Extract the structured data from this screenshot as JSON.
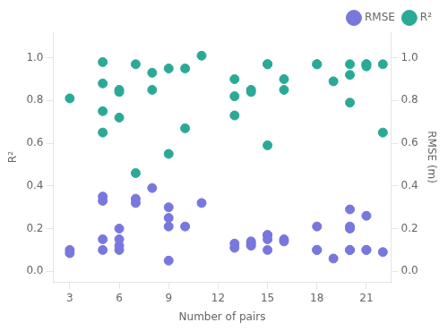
{
  "chart_data": {
    "type": "scatter",
    "xlabel": "Number of pairs",
    "ylabel": "R²",
    "y2label": "RMSE (m)",
    "xlim": [
      2.0,
      22.5
    ],
    "ylim": [
      -0.05,
      1.12
    ],
    "y2lim": [
      -0.05,
      1.12
    ],
    "xticks": [
      3,
      6,
      9,
      12,
      15,
      18,
      21
    ],
    "yticks": [
      {
        "value": 0.0,
        "label": "0.0"
      },
      0.2,
      0.4,
      0.6,
      0.8,
      {
        "value": 1.0,
        "label": "1.0"
      }
    ],
    "y2ticks": [
      {
        "value": 0.0,
        "label": "0.0"
      },
      0.2,
      0.4,
      0.6,
      0.8,
      {
        "value": 1.0,
        "label": "1.0"
      }
    ],
    "grid": false,
    "legend": "upper right",
    "series": [
      {
        "name": "RMSE",
        "color": "#7777dd",
        "axis": "y2",
        "x": [
          3,
          3,
          5,
          5,
          5,
          5,
          6,
          6,
          6,
          6,
          7,
          7,
          8,
          9,
          9,
          9,
          9,
          10,
          11,
          13,
          13,
          14,
          14,
          14,
          15,
          15,
          15,
          15,
          16,
          16,
          18,
          18,
          18,
          19,
          20,
          20,
          20,
          20,
          20,
          21,
          21,
          21,
          22
        ],
        "values": [
          0.1,
          0.085,
          0.35,
          0.33,
          0.15,
          0.1,
          0.2,
          0.15,
          0.12,
          0.1,
          0.34,
          0.32,
          0.39,
          0.3,
          0.25,
          0.21,
          0.05,
          0.21,
          0.32,
          0.11,
          0.13,
          0.12,
          0.13,
          0.14,
          0.17,
          0.17,
          0.15,
          0.1,
          0.15,
          0.14,
          0.1,
          0.1,
          0.21,
          0.06,
          0.1,
          0.1,
          0.2,
          0.21,
          0.29,
          0.1,
          0.1,
          0.26,
          0.09
        ]
      },
      {
        "name": "R²",
        "color": "#2aaa96",
        "x": [
          3,
          5,
          5,
          5,
          5,
          6,
          6,
          6,
          7,
          7,
          8,
          8,
          9,
          9,
          10,
          10,
          11,
          13,
          13,
          13,
          14,
          14,
          15,
          15,
          15,
          16,
          16,
          18,
          18,
          19,
          20,
          20,
          20,
          21,
          21,
          21,
          22,
          22
        ],
        "values": [
          0.81,
          0.98,
          0.88,
          0.75,
          0.65,
          0.85,
          0.84,
          0.72,
          0.97,
          0.46,
          0.93,
          0.85,
          0.95,
          0.55,
          0.95,
          0.67,
          1.01,
          0.82,
          0.73,
          0.9,
          0.85,
          0.84,
          0.97,
          0.97,
          0.59,
          0.9,
          0.85,
          0.97,
          0.97,
          0.89,
          0.79,
          0.97,
          0.92,
          0.97,
          0.97,
          0.96,
          0.97,
          0.65
        ]
      }
    ]
  }
}
